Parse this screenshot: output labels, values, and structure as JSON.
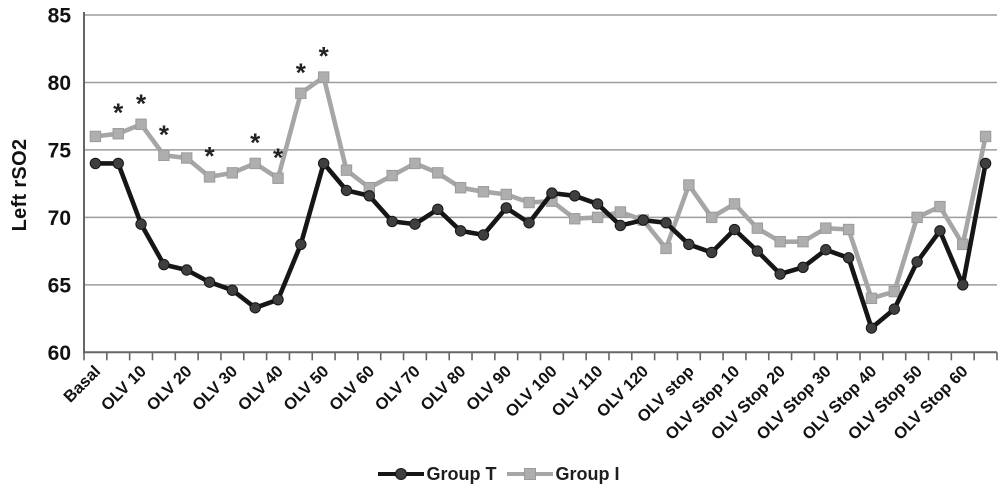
{
  "figure": {
    "y_axis_title": "Left rSO2",
    "legend_position": "bottom-center",
    "background": "#ffffff",
    "grid_color": "#9c9c9c",
    "axis_color": "#666666",
    "text_color": "#121212"
  },
  "chart_data": {
    "type": "line",
    "title": "",
    "xlabel": "",
    "ylabel": "Left rSO2",
    "ylim": [
      60,
      85
    ],
    "yticks": [
      60,
      65,
      70,
      75,
      80,
      85
    ],
    "grid": "horizontal",
    "legend_position": "bottom",
    "categories": [
      "Basal",
      "",
      "OLV 10",
      "",
      "OLV 20",
      "",
      "OLV 30",
      "",
      "OLV 40",
      "",
      "OLV 50",
      "",
      "OLV 60",
      "",
      "OLV 70",
      "",
      "OLV 80",
      "",
      "OLV 90",
      "",
      "OLV 100",
      "",
      "OLV 110",
      "",
      "OLV 120",
      "",
      "OLV stop",
      "",
      "OLV Stop 10",
      "",
      "OLV Stop 20",
      "",
      "OLV Stop 30",
      "",
      "OLV Stop 40",
      "",
      "OLV Stop 50",
      "",
      "OLV Stop 60",
      ""
    ],
    "series": [
      {
        "name": "Group I",
        "marker": "square",
        "line_color": "#a6a6a6",
        "marker_fill": "#aeaeae",
        "marker_stroke": "#9b9b9b",
        "values": [
          76.0,
          76.2,
          76.9,
          74.6,
          74.4,
          73.0,
          73.3,
          74.0,
          72.9,
          79.2,
          80.4,
          73.5,
          72.2,
          73.1,
          74.0,
          73.3,
          72.2,
          71.9,
          71.7,
          71.1,
          71.2,
          69.9,
          70.0,
          70.4,
          69.8,
          67.7,
          72.4,
          70.0,
          71.0,
          69.2,
          68.2,
          68.2,
          69.2,
          69.1,
          64.0,
          64.5,
          70.0,
          70.8,
          68.0,
          76.0
        ]
      },
      {
        "name": "Group T",
        "marker": "circle",
        "line_color": "#161616",
        "marker_fill": "#3f3f3f",
        "marker_stroke": "#161616",
        "values": [
          74.0,
          74.0,
          69.5,
          66.5,
          66.1,
          65.2,
          64.6,
          63.3,
          63.9,
          68.0,
          74.0,
          72.0,
          71.6,
          69.7,
          69.5,
          70.6,
          69.0,
          68.7,
          70.7,
          69.6,
          71.8,
          71.6,
          71.0,
          69.4,
          69.8,
          69.6,
          68.0,
          67.4,
          69.1,
          67.5,
          65.8,
          66.3,
          67.6,
          67.0,
          61.8,
          63.2,
          66.7,
          69.0,
          65.0,
          74.0
        ]
      }
    ],
    "annotations": {
      "symbol": "*",
      "series": "Group I",
      "point_indices": [
        1,
        2,
        3,
        5,
        7,
        8,
        9,
        10
      ]
    },
    "legend_order": [
      "Group T",
      "Group I"
    ]
  }
}
